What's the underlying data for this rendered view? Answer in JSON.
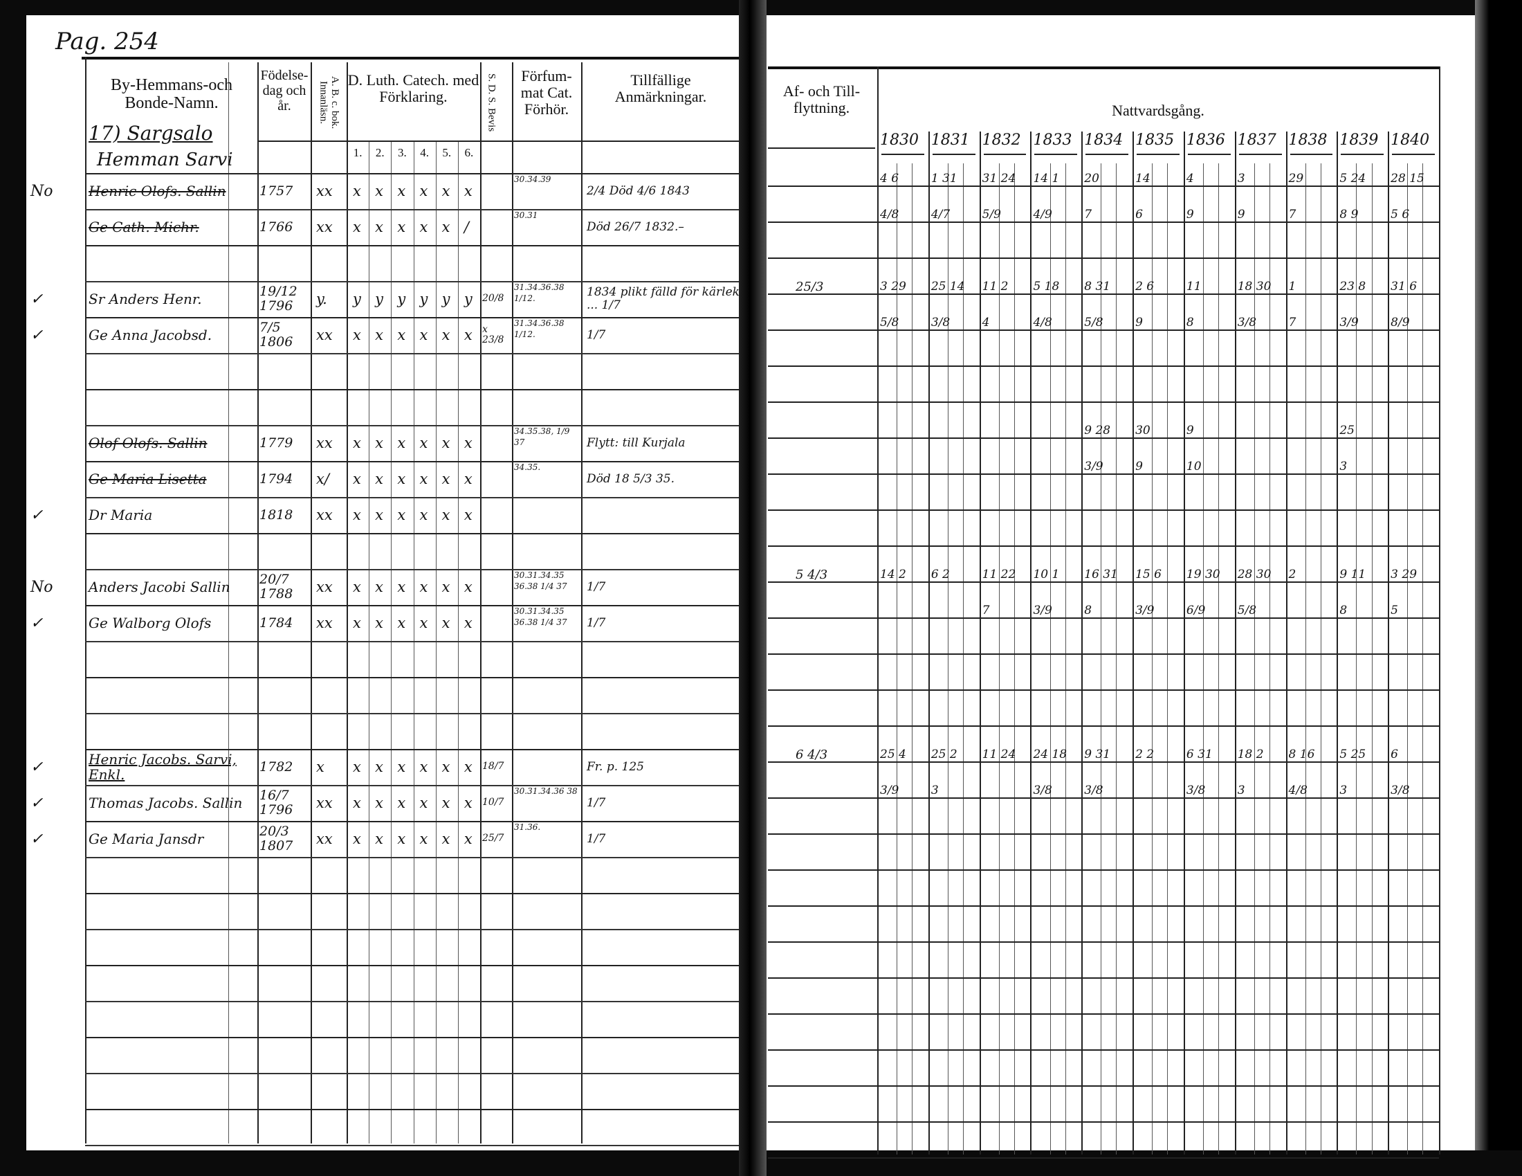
{
  "page_label": "Pag. 254",
  "left_page": {
    "headers": {
      "name": "By-Hemmans-och Bonde-Namn.",
      "birth": "Födelse-dag och år.",
      "abc": "A. B. c. bok. Innanläsn.",
      "catechism": "D. Luth. Catech. med Förklaring.",
      "sds": "S. D. S. Bevis",
      "missed": "Förfum-mat Cat. Förhör.",
      "notes": "Tillfällige Anmärkningar."
    },
    "catechism_numbers": [
      "1.",
      "2.",
      "3.",
      "4.",
      "5.",
      "6."
    ],
    "village": "17) Sargsalo",
    "homestead": "Hemman Sarvi",
    "rows": [
      {
        "mark": "No",
        "name": "Henric Olofs. Sallin",
        "struck": true,
        "birth": "1757",
        "abc": "xx",
        "catechism": [
          "x",
          "x",
          "x",
          "x",
          "x",
          "x"
        ],
        "sds": "",
        "missed": "30.34.39",
        "notes": "2/4  Död 4/6 1843"
      },
      {
        "mark": "",
        "name": "Ge Cath. Michr.",
        "struck": true,
        "birth": "1766",
        "abc": "xx",
        "catechism": [
          "x",
          "x",
          "x",
          "x",
          "x",
          "/"
        ],
        "sds": "",
        "missed": "30.31",
        "notes": "Död 26/7 1832.–"
      },
      {},
      {
        "mark": "✓",
        "name": "Sr Anders Henr.",
        "struck": false,
        "birth": "19/12 1796",
        "abc": "y.",
        "catechism": [
          "y",
          "y",
          "y",
          "y",
          "y",
          "y"
        ],
        "sds": "20/8",
        "missed": "31.34.36.38 1/12.",
        "notes": "1834 plikt fälld för kärlek ... 1/7"
      },
      {
        "mark": "✓",
        "name": "Ge Anna Jacobsd.",
        "struck": false,
        "birth": "7/5 1806",
        "abc": "xx",
        "catechism": [
          "x",
          "x",
          "x",
          "x",
          "x",
          "x"
        ],
        "sds": "x 23/8",
        "missed": "31.34.36.38 1/12.",
        "notes": "1/7"
      },
      {},
      {},
      {
        "mark": "",
        "name": "Olof Olofs. Sallin",
        "struck": true,
        "birth": "1779",
        "abc": "xx",
        "catechism": [
          "x",
          "x",
          "x",
          "x",
          "x",
          "x"
        ],
        "sds": "",
        "missed": "34.35.38, 1/9 37",
        "notes": "Flytt: till Kurjala"
      },
      {
        "mark": "",
        "name": "Ge Maria Lisetta",
        "struck": true,
        "birth": "1794",
        "abc": "x/",
        "catechism": [
          "x",
          "x",
          "x",
          "x",
          "x",
          "x"
        ],
        "sds": "",
        "missed": "34.35.",
        "notes": "Död 18 5/3 35."
      },
      {
        "mark": "✓",
        "name": "Dr Maria",
        "struck": false,
        "birth": "1818",
        "abc": "xx",
        "catechism": [
          "x",
          "x",
          "x",
          "x",
          "x",
          "x"
        ],
        "sds": "",
        "missed": "",
        "notes": ""
      },
      {},
      {
        "mark": "No",
        "name": "Anders Jacobi Sallin",
        "struck": false,
        "birth": "20/7 1788",
        "abc": "xx",
        "catechism": [
          "x",
          "x",
          "x",
          "x",
          "x",
          "x"
        ],
        "sds": "",
        "missed": "30.31.34.35 36.38 1/4 37",
        "notes": "1/7"
      },
      {
        "mark": "✓",
        "name": "Ge Walborg Olofs",
        "struck": false,
        "birth": "1784",
        "abc": "xx",
        "catechism": [
          "x",
          "x",
          "x",
          "x",
          "x",
          "x"
        ],
        "sds": "",
        "missed": "30.31.34.35 36.38 1/4 37",
        "notes": "1/7"
      },
      {},
      {},
      {},
      {
        "mark": "✓",
        "name": "Henric Jacobs. Sarvi, Enkl.",
        "struck": false,
        "underline": true,
        "birth": "1782",
        "abc": "x",
        "catechism": [
          "x",
          "x",
          "x",
          "x",
          "x",
          "x"
        ],
        "sds": "18/7",
        "missed": "",
        "notes": "Fr. p. 125"
      },
      {
        "mark": "✓",
        "name": "Thomas Jacobs. Sallin",
        "struck": false,
        "birth": "16/7 1796",
        "abc": "xx",
        "catechism": [
          "x",
          "x",
          "x",
          "x",
          "x",
          "x"
        ],
        "sds": "10/7",
        "missed": "30.31.34.36 38",
        "notes": "1/7"
      },
      {
        "mark": "✓",
        "name": "Ge Maria Jansdr",
        "struck": false,
        "birth": "20/3 1807",
        "abc": "xx",
        "catechism": [
          "x",
          "x",
          "x",
          "x",
          "x",
          "x"
        ],
        "sds": "25/7",
        "missed": "31.36.",
        "notes": "1/7"
      },
      {},
      {},
      {},
      {},
      {},
      {},
      {},
      {}
    ]
  },
  "right_page": {
    "headers": {
      "moves": "Af- och Till-flyttning.",
      "communion": "Nattvardsgång."
    },
    "years": [
      "1830",
      "1831",
      "1832",
      "1833",
      "1834",
      "1835",
      "1836",
      "1837",
      "1838",
      "1839",
      "1840"
    ],
    "rows": [
      {
        "moves": "",
        "cells": [
          "4  6",
          "1  31",
          "31 24",
          "14  1",
          "20",
          "14",
          "4",
          "3",
          "29",
          "5  24",
          "28 15"
        ]
      },
      {
        "moves": "",
        "cells": [
          "4/8",
          "4/7",
          "5/9",
          "4/9",
          "7",
          "6",
          "9",
          "9",
          "7",
          "8 9",
          "5 6"
        ]
      },
      {},
      {
        "moves": "25/3",
        "cells": [
          "3  29",
          "25 14",
          "11  2",
          "5  18",
          "8  31",
          "2  6",
          "11",
          "18 30",
          "1",
          "23  8",
          "31  6"
        ]
      },
      {
        "moves": "",
        "cells": [
          "5/8",
          "3/8",
          "4",
          "4/8",
          "5/8",
          "9",
          "8",
          "3/8",
          "7",
          "3/9",
          "8/9"
        ]
      },
      {},
      {},
      {
        "moves": "",
        "cells": [
          "",
          "",
          "",
          "",
          "9  28",
          "30",
          "9",
          "",
          "",
          "25",
          ""
        ]
      },
      {
        "moves": "",
        "cells": [
          "",
          "",
          "",
          "",
          "3/9",
          "9",
          "10",
          "",
          "",
          "3",
          ""
        ]
      },
      {},
      {},
      {
        "moves": "5  4/3",
        "cells": [
          "14  2",
          "6  2",
          "11 22",
          "10  1",
          "16 31",
          "15  6",
          "19 30",
          "28 30",
          "2",
          "9  11",
          "3  29"
        ]
      },
      {
        "moves": "",
        "cells": [
          "",
          "",
          "7",
          "3/9",
          "8",
          "3/9",
          "6/9",
          "5/8",
          "",
          "8",
          "5"
        ]
      },
      {},
      {},
      {},
      {
        "moves": "6  4/3",
        "cells": [
          "25  4",
          "25  2",
          "11 24",
          "24 18",
          "9  31",
          "2  2",
          "6  31",
          "18  2",
          "8  16",
          "5  25",
          "6"
        ]
      },
      {
        "moves": "",
        "cells": [
          "3/9",
          "3",
          "",
          "3/8",
          "3/8",
          "",
          "3/8",
          "3",
          "4/8",
          "3",
          "3/8"
        ]
      },
      {},
      {},
      {},
      {},
      {},
      {},
      {},
      {},
      {}
    ]
  },
  "colors": {
    "paper": "#ffffff",
    "ink": "#151515",
    "scan_border": "#0b0b0b"
  }
}
